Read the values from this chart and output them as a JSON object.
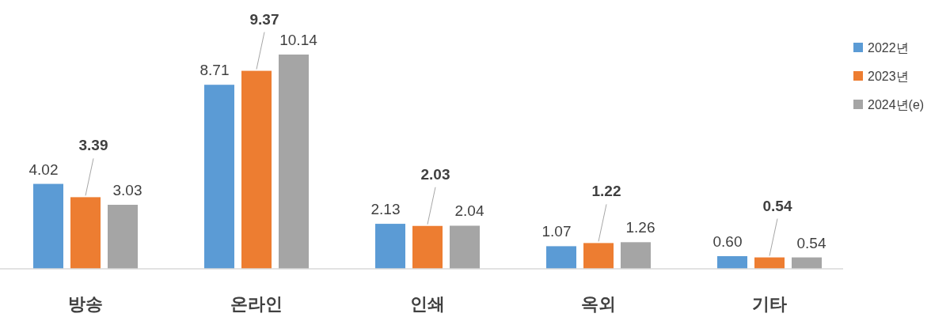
{
  "chart_data": {
    "type": "bar",
    "categories": [
      "방송",
      "온라인",
      "인쇄",
      "옥외",
      "기타"
    ],
    "series": [
      {
        "name": "2022년",
        "color": "#5b9bd5",
        "values": [
          4.02,
          8.71,
          2.13,
          1.07,
          0.6
        ],
        "value_labels": [
          "4.02",
          "8.71",
          "2.13",
          "1.07",
          "0.60"
        ]
      },
      {
        "name": "2023년",
        "color": "#ed7d31",
        "values": [
          3.39,
          9.37,
          2.03,
          1.22,
          0.54
        ],
        "value_labels": [
          "3.39",
          "9.37",
          "2.03",
          "1.22",
          "0.54"
        ]
      },
      {
        "name": "2024년(e)",
        "color": "#a5a5a5",
        "values": [
          3.03,
          10.14,
          2.04,
          1.26,
          0.54
        ],
        "value_labels": [
          "3.03",
          "10.14",
          "2.04",
          "1.26",
          "0.54"
        ]
      }
    ],
    "legend": "right"
  }
}
